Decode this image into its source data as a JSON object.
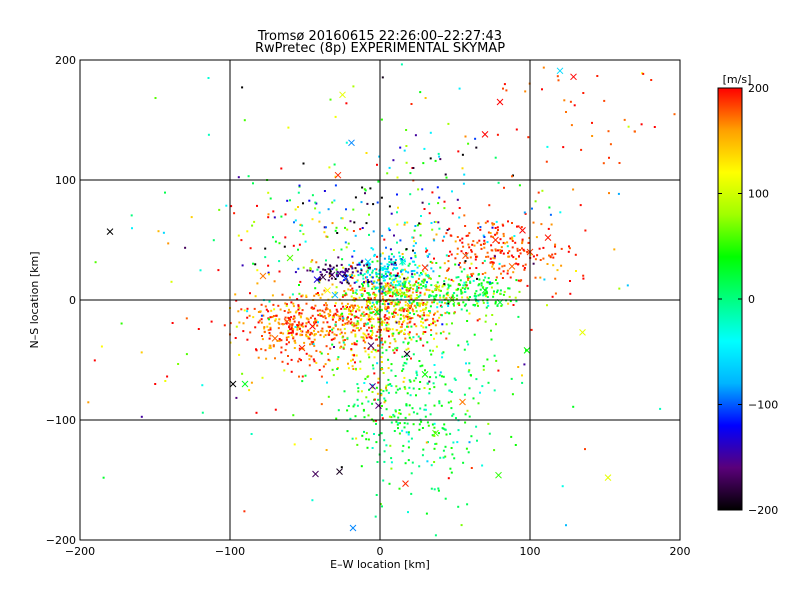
{
  "chart_data": {
    "type": "scatter",
    "title_line1": "Tromsø 20160615 22:26:00–22:27:43",
    "title_line2": "RwPretec (8p) EXPERIMENTAL SKYMAP",
    "xlabel": "E–W location [km]",
    "ylabel": "N–S location [km]",
    "xlim": [
      -200,
      200
    ],
    "ylim": [
      -200,
      200
    ],
    "x_ticks": [
      -200,
      -100,
      0,
      100,
      200
    ],
    "y_ticks": [
      -200,
      -100,
      0,
      100,
      200
    ],
    "x_tick_labels": [
      "−200",
      "−100",
      "0",
      "100",
      "200"
    ],
    "y_tick_labels": [
      "−200",
      "−100",
      "0",
      "100",
      "200"
    ],
    "grid": true,
    "colorbar": {
      "label": "[m/s]",
      "range": [
        -200,
        200
      ],
      "ticks": [
        200,
        100,
        0,
        -100,
        -200
      ],
      "tick_labels": [
        "200",
        "100",
        "0",
        "−100",
        "−200"
      ],
      "colormap": [
        "#000000",
        "#5a007a",
        "#0000ff",
        "#00b4ff",
        "#00ffff",
        "#00ff80",
        "#00ff00",
        "#a0ff00",
        "#ffff00",
        "#ffa000",
        "#ff0000"
      ]
    },
    "x_markers": [
      {
        "x": -180,
        "y": 57,
        "v": -200
      },
      {
        "x": -98,
        "y": -70,
        "v": -200
      },
      {
        "x": -43,
        "y": -145,
        "v": -170
      },
      {
        "x": -27,
        "y": -143,
        "v": -190
      },
      {
        "x": -18,
        "y": -190,
        "v": -90
      },
      {
        "x": -19,
        "y": 131,
        "v": -90
      },
      {
        "x": 120,
        "y": 191,
        "v": -60
      },
      {
        "x": -25,
        "y": 171,
        "v": 110
      },
      {
        "x": 129,
        "y": 186,
        "v": 200
      },
      {
        "x": 80,
        "y": 165,
        "v": 200
      },
      {
        "x": 70,
        "y": 138,
        "v": 200
      },
      {
        "x": -28,
        "y": 104,
        "v": 190
      },
      {
        "x": -78,
        "y": 20,
        "v": 170
      },
      {
        "x": -32,
        "y": 21,
        "v": -170
      },
      {
        "x": -38,
        "y": 19,
        "v": -180
      },
      {
        "x": -27,
        "y": 22,
        "v": -150
      },
      {
        "x": -42,
        "y": 17,
        "v": -130
      },
      {
        "x": -23,
        "y": 18,
        "v": -110
      },
      {
        "x": 18,
        "y": -45,
        "v": -190
      },
      {
        "x": -6,
        "y": -38,
        "v": -170
      },
      {
        "x": 17,
        "y": -153,
        "v": 190
      },
      {
        "x": -90,
        "y": -70,
        "v": 30
      },
      {
        "x": 135,
        "y": -27,
        "v": 110
      },
      {
        "x": 152,
        "y": -148,
        "v": 110
      },
      {
        "x": 79,
        "y": -146,
        "v": 50
      },
      {
        "x": 55,
        "y": -85,
        "v": 170
      },
      {
        "x": 37,
        "y": -111,
        "v": 60
      },
      {
        "x": 98,
        "y": -42,
        "v": 40
      },
      {
        "x": 57,
        "y": 37,
        "v": 180
      },
      {
        "x": 77,
        "y": 50,
        "v": 190
      },
      {
        "x": 95,
        "y": 58,
        "v": 200
      },
      {
        "x": 112,
        "y": 52,
        "v": 195
      },
      {
        "x": 100,
        "y": 40,
        "v": 185
      },
      {
        "x": 88,
        "y": 28,
        "v": 175
      },
      {
        "x": -62,
        "y": -18,
        "v": 185
      },
      {
        "x": -70,
        "y": -32,
        "v": 175
      },
      {
        "x": -52,
        "y": -40,
        "v": 190
      },
      {
        "x": -45,
        "y": -22,
        "v": 200
      },
      {
        "x": -30,
        "y": 4,
        "v": -80
      },
      {
        "x": 5,
        "y": 12,
        "v": 140
      },
      {
        "x": 20,
        "y": -5,
        "v": 160
      },
      {
        "x": 38,
        "y": 10,
        "v": 90
      },
      {
        "x": 30,
        "y": 27,
        "v": 190
      },
      {
        "x": -8,
        "y": 32,
        "v": -60
      },
      {
        "x": 15,
        "y": 32,
        "v": -20
      },
      {
        "x": 48,
        "y": 0,
        "v": 60
      },
      {
        "x": 70,
        "y": 8,
        "v": 30
      },
      {
        "x": 80,
        "y": -2,
        "v": 20
      },
      {
        "x": -60,
        "y": 35,
        "v": 60
      },
      {
        "x": -35,
        "y": 8,
        "v": 120
      },
      {
        "x": -2,
        "y": -10,
        "v": 30
      },
      {
        "x": 30,
        "y": -62,
        "v": 40
      },
      {
        "x": -5,
        "y": -72,
        "v": -150
      },
      {
        "x": -1,
        "y": -88,
        "v": -160
      }
    ],
    "clusters": [
      {
        "cx": -45,
        "cy": -22,
        "sx": 26,
        "sy": 14,
        "n": 420,
        "v": 175,
        "vs": 28
      },
      {
        "cx": 10,
        "cy": -8,
        "sx": 20,
        "sy": 14,
        "n": 400,
        "v": 150,
        "vs": 45
      },
      {
        "cx": 15,
        "cy": 8,
        "sx": 26,
        "sy": 10,
        "n": 260,
        "v": 60,
        "vs": 60
      },
      {
        "cx": 80,
        "cy": 40,
        "sx": 22,
        "sy": 15,
        "n": 220,
        "v": 185,
        "vs": 18
      },
      {
        "cx": 65,
        "cy": 5,
        "sx": 14,
        "sy": 8,
        "n": 120,
        "v": 30,
        "vs": 25
      },
      {
        "cx": 5,
        "cy": 25,
        "sx": 14,
        "sy": 10,
        "n": 160,
        "v": -50,
        "vs": 35
      },
      {
        "cx": -25,
        "cy": 22,
        "sx": 10,
        "sy": 6,
        "n": 70,
        "v": -175,
        "vs": 20
      },
      {
        "cx": 25,
        "cy": -85,
        "sx": 25,
        "sy": 38,
        "n": 330,
        "v": 20,
        "vs": 28
      },
      {
        "cx": -5,
        "cy": -45,
        "sx": 15,
        "sy": 25,
        "n": 100,
        "v": 100,
        "vs": 70
      },
      {
        "cx": 10,
        "cy": 70,
        "sx": 45,
        "sy": 38,
        "n": 190,
        "v": -20,
        "vs": 150
      },
      {
        "cx": 0,
        "cy": 0,
        "sx": 110,
        "sy": 100,
        "n": 200,
        "v": 50,
        "vs": 140
      },
      {
        "cx": 130,
        "cy": 150,
        "sx": 40,
        "sy": 30,
        "n": 45,
        "v": 190,
        "vs": 15
      },
      {
        "cx": -60,
        "cy": 60,
        "sx": 25,
        "sy": 30,
        "n": 60,
        "v": 100,
        "vs": 120
      }
    ]
  }
}
